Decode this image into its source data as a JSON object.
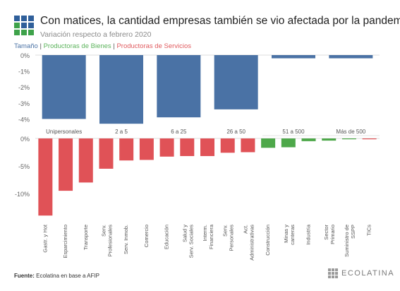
{
  "header": {
    "title": "Con matices, la cantidad empresas también se vio afectada por la pandemia",
    "subtitle": "Variación respecto a febrero 2020"
  },
  "legend": {
    "items": [
      {
        "label": "Tamaño",
        "color": "#4a72a5"
      },
      {
        "label": "Productoras de Bienes",
        "color": "#5bb35b"
      },
      {
        "label": "Productoras de Servicios",
        "color": "#e05a5e"
      }
    ],
    "separator": " | "
  },
  "colors": {
    "size": "#4a72a5",
    "goods": "#4ea84a",
    "services": "#e05257",
    "logo_blue": "#2f5f9a",
    "logo_green": "#3ea24a"
  },
  "chart_data": [
    {
      "type": "bar",
      "categories": [
        "Unipersonales",
        "2 a 5",
        "6 a 25",
        "26 a 50",
        "51 a 500",
        "Más de 500"
      ],
      "values": [
        -4.0,
        -4.3,
        -3.9,
        -3.4,
        -0.2,
        -0.2
      ],
      "y_ticks": [
        "0%",
        "-1%",
        "-2%",
        "-3%",
        "-4%"
      ],
      "ylim": [
        -4.3,
        0
      ],
      "unit": "%"
    },
    {
      "type": "bar",
      "categories": [
        "Gastr. y Hot",
        "Esparcimiento",
        "Transporte",
        "Serv. Profesionales",
        "Serv. Inmob.",
        "Comercio",
        "Educación",
        "Salud y Serv. Sociales",
        "Interm. Financiera",
        "Serv. Personales",
        "Act. Administrativas",
        "Construcción",
        "Minas y canteras",
        "Industria",
        "Sector Primario",
        "Suministro de SSPP",
        "TICs"
      ],
      "sector": [
        "services",
        "services",
        "services",
        "services",
        "services",
        "services",
        "services",
        "services",
        "services",
        "services",
        "services",
        "goods",
        "goods",
        "goods",
        "goods",
        "goods",
        "services"
      ],
      "values": [
        -14.0,
        -9.5,
        -8.0,
        -5.5,
        -4.0,
        -3.9,
        -3.3,
        -3.2,
        -3.2,
        -2.6,
        -2.5,
        -1.7,
        -1.6,
        -0.5,
        -0.4,
        -0.1,
        -0.1
      ],
      "y_ticks": [
        "0%",
        "-5%",
        "-10%"
      ],
      "ylim": [
        -14,
        0
      ],
      "unit": "%"
    }
  ],
  "footer": {
    "source_label": "Fuente:",
    "source_text": " Ecolatina en base a AFIP",
    "brand": "ECOLATINA"
  }
}
